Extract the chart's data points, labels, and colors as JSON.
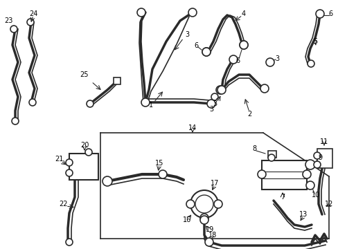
{
  "bg": "#ffffff",
  "lc": "#2a2a2a",
  "lw_thick": 2.5,
  "lw_thin": 1.2,
  "figsize": [
    4.89,
    3.6
  ],
  "dpi": 100,
  "xlim": [
    0,
    489
  ],
  "ylim": [
    0,
    360
  ]
}
